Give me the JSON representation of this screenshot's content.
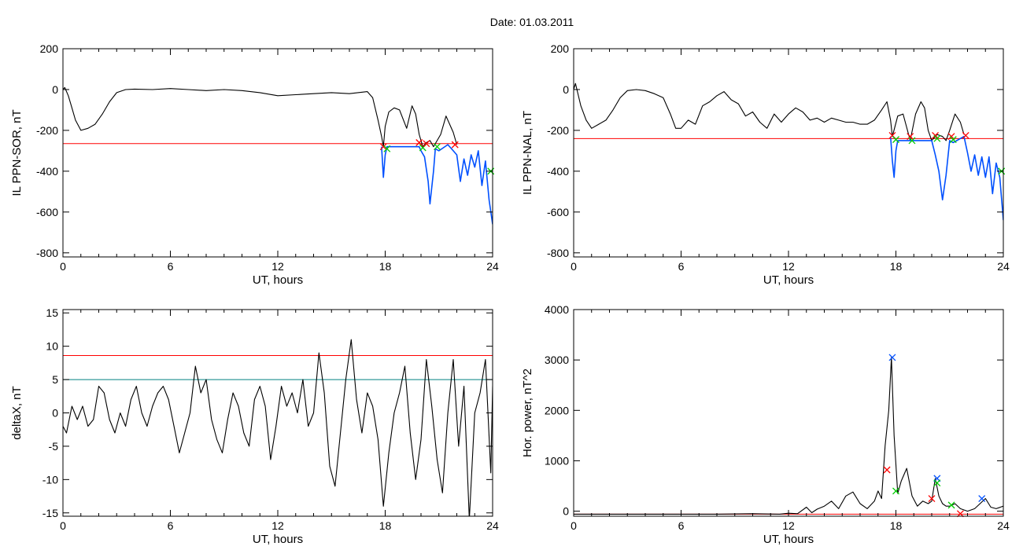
{
  "title": "Date:  01.03.2011",
  "colors": {
    "trace": "#000000",
    "threshold": "#ff0000",
    "secondary_threshold": "#008080",
    "substorm": "#0050ff",
    "marker_red": "#ff0000",
    "marker_green": "#00cc00",
    "marker_blue": "#0050ff"
  },
  "chart_data": [
    {
      "id": "ppn-sor",
      "type": "line",
      "xlabel": "UT, hours",
      "ylabel": "IL PPN-SOR, nT",
      "xlim": [
        0,
        24
      ],
      "ylim": [
        -820,
        200
      ],
      "xticks": [
        0,
        6,
        12,
        18,
        24
      ],
      "yticks": [
        200,
        0,
        -200,
        -400,
        -600,
        -800
      ],
      "thresholds": [
        {
          "value": -265,
          "color": "#ff0000"
        }
      ],
      "series": [
        {
          "role": "trace",
          "color": "#000000",
          "x": [
            0,
            0.1,
            0.3,
            0.5,
            0.7,
            1.0,
            1.4,
            1.8,
            2.2,
            2.6,
            3.0,
            3.5,
            4,
            5,
            6,
            7,
            8,
            9,
            10,
            11,
            12,
            13,
            14,
            15,
            16,
            17,
            17.3,
            17.6,
            17.8,
            17.9,
            18.0,
            18.2,
            18.5,
            18.8,
            19.2,
            19.5,
            19.7,
            19.9,
            20.1,
            20.3,
            20.5,
            20.7,
            20.9,
            21.1,
            21.4,
            21.6,
            21.8,
            22.0
          ],
          "y": [
            0,
            10,
            -30,
            -90,
            -150,
            -200,
            -190,
            -170,
            -120,
            -60,
            -15,
            0,
            2,
            0,
            5,
            0,
            -5,
            0,
            -5,
            -15,
            -30,
            -25,
            -20,
            -15,
            -20,
            -10,
            -40,
            -150,
            -230,
            -280,
            -180,
            -110,
            -90,
            -100,
            -190,
            -80,
            -120,
            -220,
            -280,
            -260,
            -250,
            -280,
            -250,
            -220,
            -130,
            -170,
            -210,
            -270
          ]
        },
        {
          "role": "substorm",
          "color": "#0050ff",
          "x": [
            17.8,
            17.9,
            18.0,
            18.1,
            19.9,
            20.0,
            20.2,
            20.4,
            20.5,
            20.7,
            20.8,
            21.0,
            21.5,
            21.8,
            22.0,
            22.2,
            22.4,
            22.6,
            22.8,
            23.0,
            23.2,
            23.4,
            23.6,
            23.8,
            24.0
          ],
          "y": [
            -280,
            -430,
            -320,
            -280,
            -280,
            -300,
            -330,
            -450,
            -560,
            -400,
            -290,
            -300,
            -270,
            -300,
            -320,
            -450,
            -340,
            -420,
            -320,
            -380,
            -300,
            -470,
            -350,
            -540,
            -660
          ]
        }
      ],
      "markers": [
        {
          "x": 17.9,
          "y": -280,
          "color": "#ff0000"
        },
        {
          "x": 18.1,
          "y": -290,
          "color": "#00cc00"
        },
        {
          "x": 19.9,
          "y": -260,
          "color": "#ff0000"
        },
        {
          "x": 20.1,
          "y": -285,
          "color": "#00cc00"
        },
        {
          "x": 20.3,
          "y": -265,
          "color": "#ff0000"
        },
        {
          "x": 20.9,
          "y": -280,
          "color": "#00cc00"
        },
        {
          "x": 21.9,
          "y": -270,
          "color": "#ff0000"
        },
        {
          "x": 23.9,
          "y": -400,
          "color": "#00cc00"
        }
      ]
    },
    {
      "id": "ppn-nal",
      "type": "line",
      "xlabel": "UT, hours",
      "ylabel": "IL PPN-NAL, nT",
      "xlim": [
        0,
        24
      ],
      "ylim": [
        -820,
        200
      ],
      "xticks": [
        0,
        6,
        12,
        18,
        24
      ],
      "yticks": [
        200,
        0,
        -200,
        -400,
        -600,
        -800
      ],
      "thresholds": [
        {
          "value": -240,
          "color": "#ff0000"
        }
      ],
      "series": [
        {
          "role": "trace",
          "color": "#000000",
          "x": [
            0,
            0.1,
            0.4,
            0.7,
            1.0,
            1.4,
            1.8,
            2.2,
            2.6,
            3.0,
            3.5,
            4,
            4.5,
            5,
            5.4,
            5.7,
            6.0,
            6.4,
            6.8,
            7.2,
            7.6,
            8.0,
            8.4,
            8.8,
            9.2,
            9.6,
            10.0,
            10.4,
            10.8,
            11.2,
            11.6,
            12.0,
            12.4,
            12.8,
            13.2,
            13.6,
            14.0,
            14.4,
            14.8,
            15.2,
            15.6,
            16.0,
            16.4,
            16.8,
            17.2,
            17.5,
            17.7,
            17.8
          ],
          "y": [
            0,
            30,
            -80,
            -150,
            -190,
            -170,
            -150,
            -100,
            -40,
            -5,
            0,
            -5,
            -20,
            -40,
            -120,
            -190,
            -190,
            -150,
            -170,
            -80,
            -60,
            -30,
            -10,
            -50,
            -70,
            -130,
            -110,
            -160,
            -190,
            -120,
            -160,
            -120,
            -90,
            -110,
            -150,
            -140,
            -160,
            -140,
            -150,
            -160,
            -160,
            -170,
            -170,
            -150,
            -100,
            -60,
            -150,
            -230
          ]
        },
        {
          "role": "trace",
          "color": "#000000",
          "x": [
            17.8,
            18.1,
            18.4,
            18.8,
            19.1,
            19.4,
            19.6,
            19.8,
            20.0,
            20.3,
            20.6,
            20.8,
            21.0,
            21.3,
            21.6,
            21.8
          ],
          "y": [
            -230,
            -130,
            -120,
            -250,
            -120,
            -60,
            -90,
            -200,
            -250,
            -220,
            -230,
            -250,
            -200,
            -120,
            -160,
            -220
          ]
        },
        {
          "role": "substorm",
          "color": "#0050ff",
          "x": [
            17.7,
            17.8,
            17.9,
            18.0,
            18.1,
            20.0,
            20.2,
            20.4,
            20.6,
            20.8,
            21.0,
            21.2,
            21.8,
            22.0,
            22.2,
            22.4,
            22.6,
            22.8,
            23.0,
            23.2,
            23.4,
            23.6,
            23.8,
            24.0
          ],
          "y": [
            -230,
            -350,
            -430,
            -300,
            -250,
            -250,
            -320,
            -400,
            -540,
            -420,
            -250,
            -260,
            -230,
            -310,
            -400,
            -320,
            -420,
            -330,
            -430,
            -330,
            -510,
            -360,
            -430,
            -640
          ]
        }
      ],
      "markers": [
        {
          "x": 17.8,
          "y": -225,
          "color": "#ff0000"
        },
        {
          "x": 18.0,
          "y": -245,
          "color": "#00cc00"
        },
        {
          "x": 18.8,
          "y": -230,
          "color": "#ff0000"
        },
        {
          "x": 18.9,
          "y": -250,
          "color": "#00cc00"
        },
        {
          "x": 20.2,
          "y": -225,
          "color": "#ff0000"
        },
        {
          "x": 20.3,
          "y": -240,
          "color": "#00cc00"
        },
        {
          "x": 21.1,
          "y": -230,
          "color": "#ff0000"
        },
        {
          "x": 21.2,
          "y": -245,
          "color": "#00cc00"
        },
        {
          "x": 21.9,
          "y": -225,
          "color": "#ff0000"
        },
        {
          "x": 23.9,
          "y": -400,
          "color": "#00cc00"
        }
      ]
    },
    {
      "id": "deltax",
      "type": "line",
      "xlabel": "UT, hours",
      "ylabel": "deltaX, nT",
      "xlim": [
        0,
        24
      ],
      "ylim": [
        -15.5,
        15.5
      ],
      "xticks": [
        0,
        6,
        12,
        18,
        24
      ],
      "yticks": [
        15,
        10,
        5,
        0,
        -5,
        -10,
        -15
      ],
      "thresholds": [
        {
          "value": 8.6,
          "color": "#ff0000"
        },
        {
          "value": 5.0,
          "color": "#008080"
        }
      ],
      "series": [
        {
          "role": "trace",
          "color": "#000000",
          "x": [
            0,
            0.2,
            0.5,
            0.8,
            1.1,
            1.4,
            1.7,
            2.0,
            2.3,
            2.6,
            2.9,
            3.2,
            3.5,
            3.8,
            4.1,
            4.4,
            4.7,
            5.0,
            5.3,
            5.6,
            5.9,
            6.2,
            6.5,
            6.8,
            7.1,
            7.4,
            7.7,
            8.0,
            8.3,
            8.6,
            8.9,
            9.2,
            9.5,
            9.8,
            10.1,
            10.4,
            10.7,
            11.0,
            11.3,
            11.6,
            11.9,
            12.2,
            12.5,
            12.8,
            13.1,
            13.4,
            13.7,
            14.0,
            14.3,
            14.6,
            14.9,
            15.2,
            15.5,
            15.8,
            16.1,
            16.4,
            16.7,
            17.0,
            17.3,
            17.6,
            17.9,
            18.2,
            18.5,
            18.8,
            19.1,
            19.4,
            19.7,
            20.0,
            20.3,
            20.6,
            20.9,
            21.2,
            21.5,
            21.8,
            22.1,
            22.4,
            22.7,
            23.0,
            23.3,
            23.6,
            23.9,
            24.0
          ],
          "y": [
            -2,
            -3,
            1,
            -1,
            1,
            -2,
            -1,
            4,
            3,
            -1,
            -3,
            0,
            -2,
            2,
            4,
            0,
            -2,
            1,
            3,
            4,
            2,
            -2,
            -6,
            -3,
            0,
            7,
            3,
            5,
            -1,
            -4,
            -6,
            -1,
            3,
            1,
            -3,
            -5,
            2,
            4,
            1,
            -7,
            -2,
            4,
            1,
            3,
            0,
            5,
            -2,
            0,
            9,
            3,
            -8,
            -11,
            -3,
            5,
            11,
            2,
            -3,
            3,
            1,
            -4,
            -14,
            -6,
            0,
            3,
            7,
            -3,
            -10,
            -4,
            8,
            1,
            -7,
            -12,
            0,
            8,
            -5,
            4,
            -16,
            0,
            3,
            8,
            -9,
            4
          ]
        }
      ],
      "markers": []
    },
    {
      "id": "hor-power",
      "type": "line",
      "xlabel": "UT, hours",
      "ylabel": "Hor. power, nT^2",
      "xlim": [
        0,
        24
      ],
      "ylim": [
        -100,
        4000
      ],
      "xticks": [
        0,
        6,
        12,
        18,
        24
      ],
      "yticks": [
        4000,
        3000,
        2000,
        1000,
        0
      ],
      "thresholds": [
        {
          "value": -60,
          "color": "#ff0000"
        }
      ],
      "series": [
        {
          "role": "trace",
          "color": "#000000",
          "x": [
            0,
            2,
            4,
            6,
            8,
            10,
            11.5,
            12.0,
            12.5,
            13.0,
            13.3,
            13.6,
            14.0,
            14.4,
            14.8,
            15.2,
            15.6,
            16.0,
            16.4,
            16.8,
            17.0,
            17.2,
            17.4,
            17.6,
            17.75,
            17.9,
            18.1,
            18.3,
            18.6,
            18.9,
            19.2,
            19.5,
            19.8,
            20.0,
            20.2,
            20.4,
            20.6,
            20.8,
            21.0,
            21.3,
            21.6,
            22.0,
            22.4,
            22.7,
            23.0,
            23.3,
            23.6,
            24.0
          ],
          "y": [
            -60,
            -60,
            -60,
            -60,
            -60,
            -50,
            -60,
            -40,
            -50,
            80,
            -30,
            40,
            100,
            200,
            50,
            300,
            380,
            150,
            50,
            200,
            400,
            250,
            1300,
            2000,
            3050,
            1500,
            350,
            600,
            850,
            300,
            100,
            200,
            150,
            200,
            650,
            300,
            150,
            100,
            100,
            150,
            50,
            0,
            50,
            150,
            250,
            80,
            50,
            100
          ]
        }
      ],
      "markers": [
        {
          "x": 17.5,
          "y": 820,
          "color": "#ff0000"
        },
        {
          "x": 17.8,
          "y": 3050,
          "color": "#0050ff"
        },
        {
          "x": 18.0,
          "y": 400,
          "color": "#00cc00"
        },
        {
          "x": 20.0,
          "y": 250,
          "color": "#ff0000"
        },
        {
          "x": 20.3,
          "y": 650,
          "color": "#0050ff"
        },
        {
          "x": 20.3,
          "y": 560,
          "color": "#00cc00"
        },
        {
          "x": 21.1,
          "y": 120,
          "color": "#00cc00"
        },
        {
          "x": 21.6,
          "y": -50,
          "color": "#ff0000"
        },
        {
          "x": 22.8,
          "y": 250,
          "color": "#0050ff"
        }
      ]
    }
  ]
}
